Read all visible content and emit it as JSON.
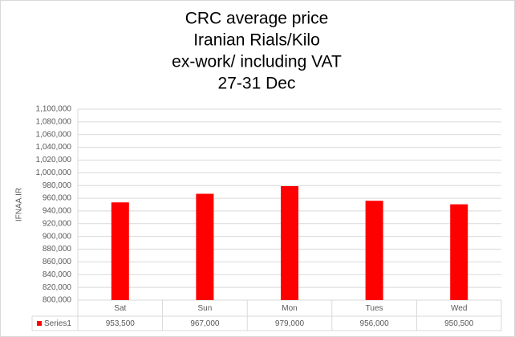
{
  "chart_data": {
    "type": "bar",
    "title": [
      "CRC average price",
      "Iranian Rials/Kilo",
      "ex-work/ including VAT",
      "27-31 Dec"
    ],
    "y_label": "IFNAA.IR",
    "categories": [
      "Sat",
      "Sun",
      "Mon",
      "Tues",
      "Wed"
    ],
    "series": [
      {
        "name": "Series1",
        "color": "#ff0000",
        "values": [
          953500,
          967000,
          979000,
          956000,
          950500
        ],
        "value_labels": [
          "953,500",
          "967,000",
          "979,000",
          "956,000",
          "950,500"
        ]
      }
    ],
    "ylim": [
      800000,
      1100000
    ],
    "yticks": [
      {
        "value": 800000,
        "label": "800,000"
      },
      {
        "value": 820000,
        "label": "820,000"
      },
      {
        "value": 840000,
        "label": "840,000"
      },
      {
        "value": 860000,
        "label": "860,000"
      },
      {
        "value": 880000,
        "label": "880,000"
      },
      {
        "value": 900000,
        "label": "900,000"
      },
      {
        "value": 920000,
        "label": "920,000"
      },
      {
        "value": 940000,
        "label": "940,000"
      },
      {
        "value": 960000,
        "label": "960,000"
      },
      {
        "value": 980000,
        "label": "980,000"
      },
      {
        "value": 1000000,
        "label": "1,000,000"
      },
      {
        "value": 1020000,
        "label": "1,020,000"
      },
      {
        "value": 1040000,
        "label": "1,040,000"
      },
      {
        "value": 1060000,
        "label": "1,060,000"
      },
      {
        "value": 1080000,
        "label": "1,080,000"
      },
      {
        "value": 1100000,
        "label": "1,100,000"
      }
    ],
    "grid": true
  }
}
